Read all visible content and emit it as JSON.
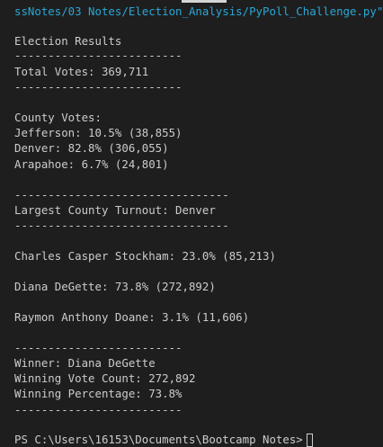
{
  "command_tail": "ssNotes/03 Notes/Election_Analysis/PyPoll_Challenge.py\"",
  "title": "Election Results",
  "divider_short": "-------------------------",
  "divider_long": "--------------------------------",
  "total_votes": "Total Votes: 369,711",
  "county_header": "County Votes:",
  "counties": [
    "Jefferson: 10.5% (38,855)",
    "Denver: 82.8% (306,055)",
    "Arapahoe: 6.7% (24,801)"
  ],
  "largest_county": "Largest County Turnout: Denver",
  "candidates": [
    "Charles Casper Stockham: 23.0% (85,213)",
    "Diana DeGette: 73.8% (272,892)",
    "Raymon Anthony Doane: 3.1% (11,606)"
  ],
  "winner": "Winner: Diana DeGette",
  "winning_count": "Winning Vote Count: 272,892",
  "winning_percentage": "Winning Percentage: 73.8%",
  "prompt": "PS C:\\Users\\16153\\Documents\\Bootcamp Notes>"
}
